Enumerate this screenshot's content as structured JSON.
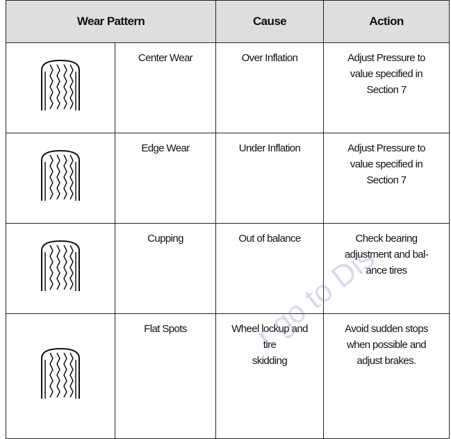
{
  "table": {
    "header": [
      "Wear Pattern",
      "Cause",
      "Action"
    ],
    "rows": [
      {
        "pattern": [
          "Center Wear"
        ],
        "cause": [
          "Over Inflation"
        ],
        "action": [
          "Adjust Pressure to",
          "value specified in",
          "Section 7"
        ]
      },
      {
        "pattern": [
          "Edge Wear"
        ],
        "cause": [
          "Under Inflation"
        ],
        "action": [
          "Adjust Pressure to",
          "value specified in",
          "Section 7"
        ]
      },
      {
        "pattern": [
          "Cupping"
        ],
        "cause": [
          "Out of balance"
        ],
        "action": [
          "Check bearing",
          "adjustment and bal-",
          "ance tires"
        ]
      },
      {
        "pattern": [
          "Flat Spots"
        ],
        "cause": [
          "Wheel lockup and",
          "tire",
          "skidding"
        ],
        "action": [
          "Avoid sudden stops",
          "when possible and",
          "adjust brakes."
        ]
      }
    ]
  },
  "watermark": "r go to Dis"
}
